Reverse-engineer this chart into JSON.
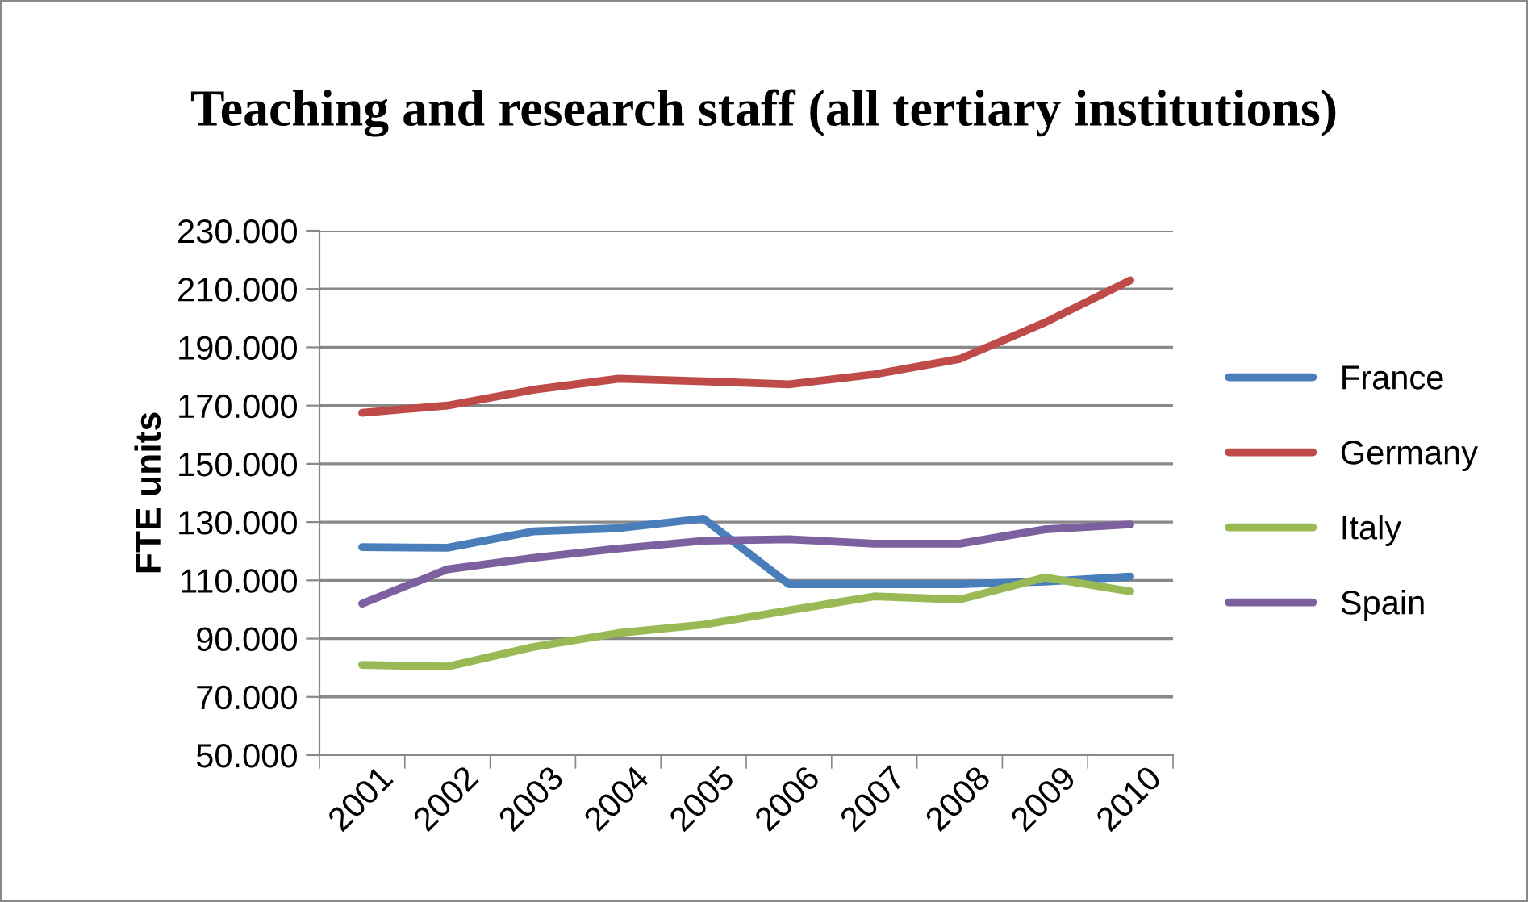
{
  "chart_data": {
    "type": "line",
    "title": "Teaching and research staff (all tertiary institutions)",
    "ylabel": "FTE units",
    "categories": [
      "2001",
      "2002",
      "2003",
      "2004",
      "2005",
      "2006",
      "2007",
      "2008",
      "2009",
      "2010"
    ],
    "series": [
      {
        "name": "France",
        "color": "#4a7ebb",
        "values": [
          121400,
          121200,
          126800,
          127900,
          131200,
          108700,
          108700,
          108700,
          109600,
          111300
        ]
      },
      {
        "name": "Germany",
        "color": "#be4b48",
        "values": [
          167500,
          170000,
          175400,
          179200,
          178300,
          177300,
          180700,
          186000,
          198500,
          213000
        ]
      },
      {
        "name": "Italy",
        "color": "#98b954",
        "values": [
          81000,
          80400,
          87100,
          91900,
          94800,
          99700,
          104500,
          103400,
          111000,
          106200
        ]
      },
      {
        "name": "Spain",
        "color": "#7d60a0",
        "values": [
          102000,
          113800,
          117700,
          120900,
          123600,
          124100,
          122600,
          122600,
          127500,
          129200
        ]
      }
    ],
    "ylim": [
      50000,
      230000
    ],
    "yticks": [
      {
        "value": 50000,
        "label": "50.000"
      },
      {
        "value": 70000,
        "label": "70.000"
      },
      {
        "value": 90000,
        "label": "90.000"
      },
      {
        "value": 110000,
        "label": "110.000"
      },
      {
        "value": 130000,
        "label": "130.000"
      },
      {
        "value": 150000,
        "label": "150.000"
      },
      {
        "value": 170000,
        "label": "170.000"
      },
      {
        "value": 190000,
        "label": "190.000"
      },
      {
        "value": 210000,
        "label": "210.000"
      },
      {
        "value": 230000,
        "label": "230.000"
      }
    ],
    "grid": "y",
    "legend": "right",
    "marker": "none",
    "line_style": "solid"
  }
}
